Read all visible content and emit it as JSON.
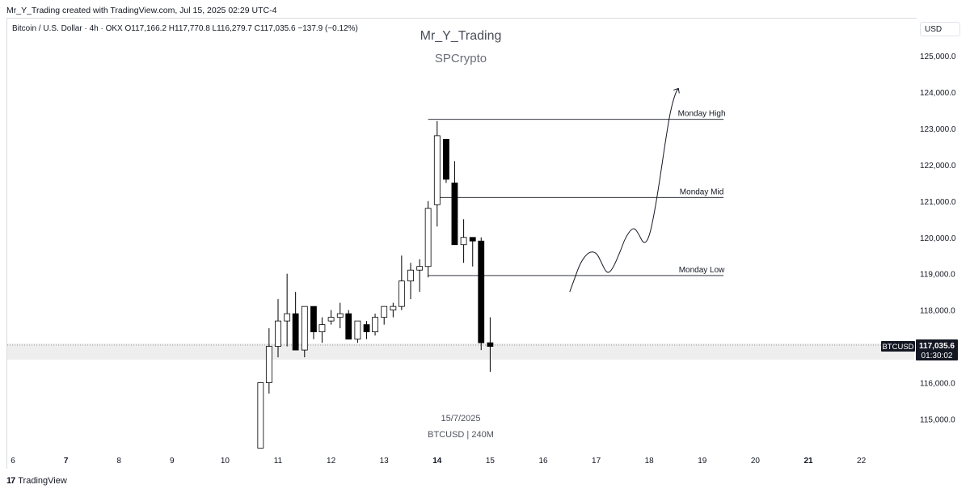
{
  "header": {
    "created_by": "Mr_Y_Trading created with TradingView.com, Jul 15, 2025 02:29 UTC-4",
    "legend": "Bitcoin / U.S. Dollar · 4h · OKX  O117,166.2  H117,770.8  L116,279.7  C117,035.6  −137.9 (−0.12%)"
  },
  "watermark": {
    "title": "Mr_Y_Trading",
    "subtitle": "SPCrypto",
    "date": "15/7/2025",
    "symbol_interval": "BTCUSD | 240M"
  },
  "currency_button": "USD",
  "price_tag": {
    "symbol": "BTCUSD",
    "price": "117,035.6",
    "countdown": "01:30:02"
  },
  "footer": {
    "logo": "17",
    "brand": "TradingView"
  },
  "colors": {
    "bull_body": "#ffffff",
    "bear_body": "#000000",
    "wick": "#000000",
    "level_line": "#131722",
    "axis_text": "#131722"
  },
  "chart_data": {
    "type": "candlestick",
    "symbol": "BTCUSD",
    "timeframe": "4h",
    "ylim": [
      114200,
      125700
    ],
    "y_ticks": [
      "115,000.0",
      "116,000.0",
      "117,000.0",
      "118,000.0",
      "119,000.0",
      "120,000.0",
      "121,000.0",
      "122,000.0",
      "123,000.0",
      "124,000.0",
      "125,000.0"
    ],
    "y_tick_values": [
      115000,
      116000,
      117000,
      118000,
      119000,
      120000,
      121000,
      122000,
      123000,
      124000,
      125000
    ],
    "x_ticks": [
      {
        "label": "6",
        "day": 6,
        "bold": false
      },
      {
        "label": "7",
        "day": 7,
        "bold": true
      },
      {
        "label": "8",
        "day": 8,
        "bold": false
      },
      {
        "label": "9",
        "day": 9,
        "bold": false
      },
      {
        "label": "10",
        "day": 10,
        "bold": false
      },
      {
        "label": "11",
        "day": 11,
        "bold": false
      },
      {
        "label": "12",
        "day": 12,
        "bold": false
      },
      {
        "label": "13",
        "day": 13,
        "bold": false
      },
      {
        "label": "14",
        "day": 14,
        "bold": true
      },
      {
        "label": "15",
        "day": 15,
        "bold": false
      },
      {
        "label": "16",
        "day": 16,
        "bold": false
      },
      {
        "label": "17",
        "day": 17,
        "bold": false
      },
      {
        "label": "18",
        "day": 18,
        "bold": false
      },
      {
        "label": "19",
        "day": 19,
        "bold": false
      },
      {
        "label": "20",
        "day": 20,
        "bold": false
      },
      {
        "label": "21",
        "day": 21,
        "bold": true
      },
      {
        "label": "22",
        "day": 22,
        "bold": false
      }
    ],
    "candles": [
      {
        "t": 10.67,
        "o": 114200,
        "h": 116000,
        "l": 114200,
        "c": 116000
      },
      {
        "t": 10.83,
        "o": 116000,
        "h": 117500,
        "l": 115700,
        "c": 117000
      },
      {
        "t": 11.0,
        "o": 117000,
        "h": 118300,
        "l": 116700,
        "c": 117700
      },
      {
        "t": 11.17,
        "o": 117700,
        "h": 119000,
        "l": 117000,
        "c": 117900
      },
      {
        "t": 11.33,
        "o": 117900,
        "h": 118500,
        "l": 116900,
        "c": 116900
      },
      {
        "t": 11.5,
        "o": 116900,
        "h": 118100,
        "l": 116700,
        "c": 118100
      },
      {
        "t": 11.67,
        "o": 118100,
        "h": 118100,
        "l": 117200,
        "c": 117400
      },
      {
        "t": 11.83,
        "o": 117400,
        "h": 117800,
        "l": 117100,
        "c": 117600
      },
      {
        "t": 12.0,
        "o": 117700,
        "h": 118000,
        "l": 117600,
        "c": 117800
      },
      {
        "t": 12.17,
        "o": 117800,
        "h": 118200,
        "l": 117500,
        "c": 117900
      },
      {
        "t": 12.33,
        "o": 117900,
        "h": 118000,
        "l": 117200,
        "c": 117200
      },
      {
        "t": 12.5,
        "o": 117200,
        "h": 117700,
        "l": 117100,
        "c": 117700
      },
      {
        "t": 12.67,
        "o": 117600,
        "h": 117700,
        "l": 117200,
        "c": 117400
      },
      {
        "t": 12.83,
        "o": 117400,
        "h": 117900,
        "l": 117300,
        "c": 117800
      },
      {
        "t": 13.0,
        "o": 117800,
        "h": 118100,
        "l": 117600,
        "c": 118100
      },
      {
        "t": 13.17,
        "o": 118000,
        "h": 118200,
        "l": 117800,
        "c": 118100
      },
      {
        "t": 13.33,
        "o": 118100,
        "h": 119500,
        "l": 118000,
        "c": 118800
      },
      {
        "t": 13.5,
        "o": 118800,
        "h": 119300,
        "l": 118300,
        "c": 119100
      },
      {
        "t": 13.67,
        "o": 119100,
        "h": 119400,
        "l": 118500,
        "c": 119200
      },
      {
        "t": 13.83,
        "o": 119200,
        "h": 121000,
        "l": 118900,
        "c": 120800
      },
      {
        "t": 14.0,
        "o": 120900,
        "h": 123200,
        "l": 120300,
        "c": 122800
      },
      {
        "t": 14.17,
        "o": 122700,
        "h": 122700,
        "l": 121500,
        "c": 121600
      },
      {
        "t": 14.33,
        "o": 121500,
        "h": 122100,
        "l": 119800,
        "c": 119800
      },
      {
        "t": 14.5,
        "o": 119800,
        "h": 120500,
        "l": 119300,
        "c": 120000
      },
      {
        "t": 14.67,
        "o": 120000,
        "h": 120000,
        "l": 119200,
        "c": 119900
      },
      {
        "t": 14.83,
        "o": 119900,
        "h": 120000,
        "l": 116900,
        "c": 117100
      },
      {
        "t": 15.0,
        "o": 117100,
        "h": 117800,
        "l": 116300,
        "c": 117000
      }
    ],
    "levels": [
      {
        "label": "Monday High",
        "price": 123250,
        "from_day": 13.83,
        "to_day": 19.4
      },
      {
        "label": "Monday Mid",
        "price": 121100,
        "from_day": 14.0,
        "to_day": 19.4
      },
      {
        "label": "Monday Low",
        "price": 118950,
        "from_day": 13.83,
        "to_day": 19.4
      }
    ],
    "projection_path": [
      [
        16.5,
        118500
      ],
      [
        16.6,
        118900
      ],
      [
        16.7,
        119300
      ],
      [
        16.85,
        119600
      ],
      [
        17.0,
        119600
      ],
      [
        17.1,
        119300
      ],
      [
        17.2,
        119000
      ],
      [
        17.3,
        119100
      ],
      [
        17.45,
        119600
      ],
      [
        17.55,
        120000
      ],
      [
        17.7,
        120300
      ],
      [
        17.8,
        120100
      ],
      [
        17.9,
        119800
      ],
      [
        18.0,
        120000
      ],
      [
        18.1,
        120700
      ],
      [
        18.2,
        121600
      ],
      [
        18.3,
        122600
      ],
      [
        18.4,
        123500
      ],
      [
        18.5,
        124000
      ],
      [
        18.55,
        124100
      ]
    ],
    "current_price": 117035.6
  }
}
